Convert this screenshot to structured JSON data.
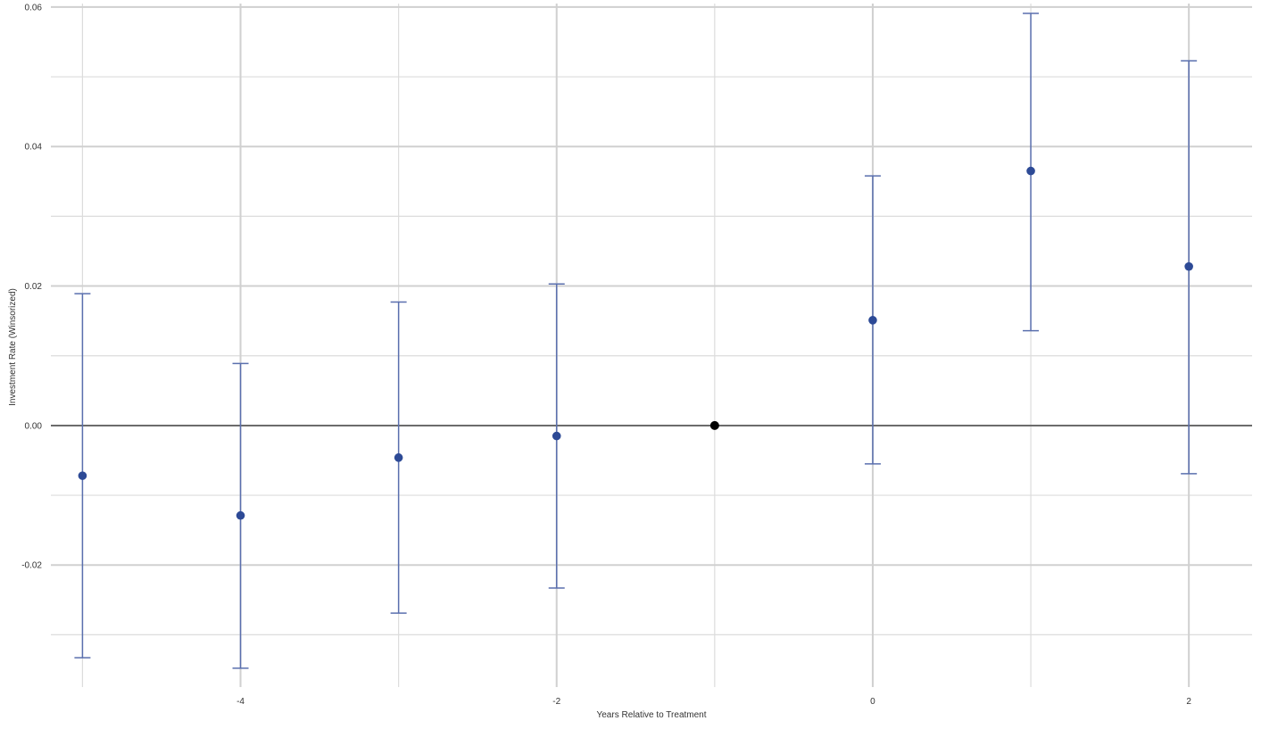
{
  "chart_data": {
    "type": "scatter",
    "title": "",
    "xlabel": "Years Relative to Treatment",
    "ylabel": "Investment Rate (Winsorized)",
    "xlim": [
      -5.2,
      2.4
    ],
    "ylim": [
      -0.0375,
      0.0605
    ],
    "x_ticks": [
      -4,
      -2,
      0,
      2
    ],
    "x_tick_labels": [
      "-4",
      "-2",
      "0",
      "2"
    ],
    "y_ticks": [
      -0.02,
      0.0,
      0.02,
      0.04,
      0.06
    ],
    "y_tick_labels": [
      "-0.02",
      "0.00",
      "0.02",
      "0.04",
      "0.06"
    ],
    "x_minor_gridlines": [
      -5,
      -3,
      -1,
      1
    ],
    "y_minor_gridlines": [
      -0.03,
      -0.01,
      0.01,
      0.03,
      0.05
    ],
    "grid": true,
    "zero_line": true,
    "reference_point": {
      "x": -1,
      "y": 0.0,
      "color": "#000000"
    },
    "series": [
      {
        "color": "#2d4a96",
        "points": [
          {
            "x": -5,
            "y": -0.0072,
            "lower": -0.0333,
            "upper": 0.0189
          },
          {
            "x": -4,
            "y": -0.0129,
            "lower": -0.0348,
            "upper": 0.0089
          },
          {
            "x": -3,
            "y": -0.0046,
            "lower": -0.0269,
            "upper": 0.0177
          },
          {
            "x": -2,
            "y": -0.0015,
            "lower": -0.0233,
            "upper": 0.0203
          },
          {
            "x": 0,
            "y": 0.0151,
            "lower": -0.0055,
            "upper": 0.0358
          },
          {
            "x": 1,
            "y": 0.0365,
            "lower": 0.0136,
            "upper": 0.0591
          },
          {
            "x": 2,
            "y": 0.0228,
            "lower": -0.0069,
            "upper": 0.0523
          }
        ]
      }
    ]
  }
}
